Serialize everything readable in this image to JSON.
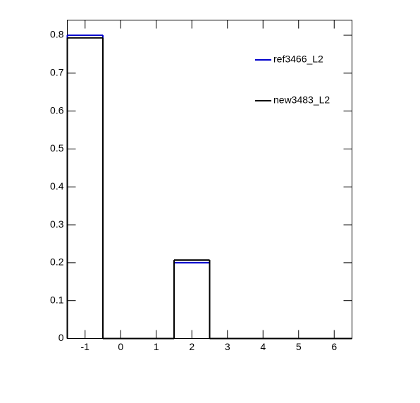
{
  "chart_data": {
    "type": "histogram",
    "bins": [
      -1.5,
      -0.5,
      0.5,
      1.5,
      2.5,
      3.5,
      4.5,
      5.5,
      6.5
    ],
    "series": [
      {
        "name": "ref3466_L2",
        "color": "#0000cc",
        "values": [
          0.8,
          0,
          0,
          0.2,
          0,
          0,
          0,
          0
        ]
      },
      {
        "name": "new3483_L2",
        "color": "#000000",
        "values": [
          0.793,
          0,
          0,
          0.207,
          0,
          0,
          0,
          0
        ]
      }
    ],
    "xlim": [
      -1.5,
      6.5
    ],
    "xticks": [
      -1,
      0,
      1,
      2,
      3,
      4,
      5,
      6
    ],
    "ylim": [
      0,
      0.84
    ],
    "yticks": [
      0,
      0.1,
      0.2,
      0.3,
      0.4,
      0.5,
      0.6,
      0.7,
      0.8
    ]
  }
}
